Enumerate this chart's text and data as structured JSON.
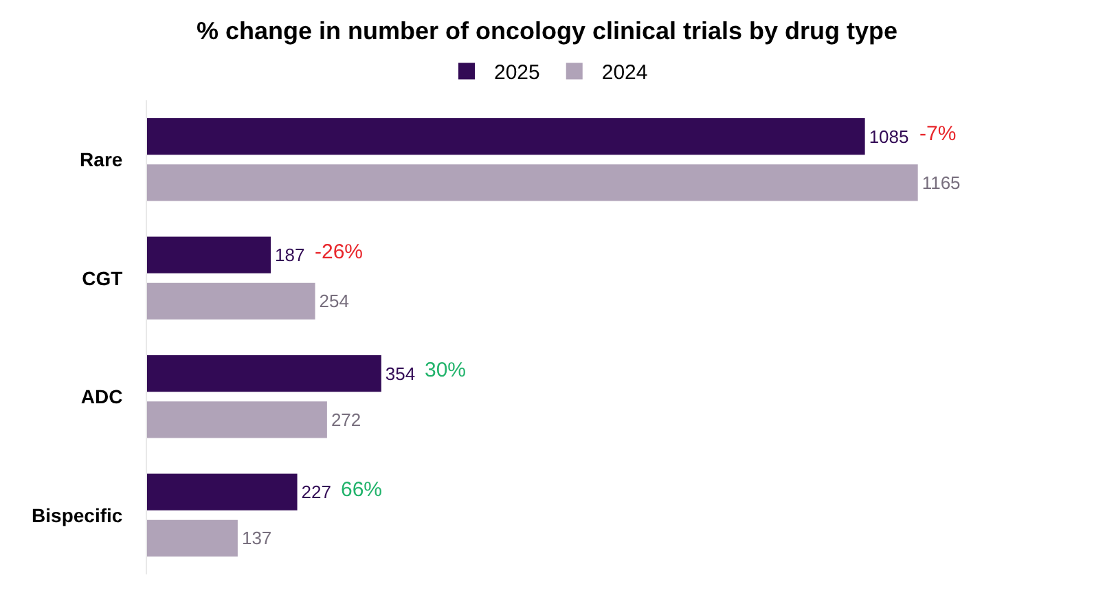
{
  "chart_data": {
    "type": "bar",
    "orientation": "horizontal",
    "title": "% change in number of oncology clinical trials by drug type",
    "categories": [
      "Rare",
      "CGT",
      "ADC",
      "Bispecific"
    ],
    "series": [
      {
        "name": "2025",
        "color": "#320a55",
        "values": [
          1085,
          187,
          354,
          227
        ]
      },
      {
        "name": "2024",
        "color": "#b0a3b8",
        "values": [
          1165,
          254,
          272,
          137
        ]
      }
    ],
    "data_labels": true,
    "legend": "top",
    "tick_labels": "y",
    "annotations": [
      {
        "text": "-7%",
        "x": 1085,
        "y": "Rare"
      },
      {
        "text": "-26%",
        "x": 187,
        "y": "CGT"
      },
      {
        "text": "30%",
        "x": 354,
        "y": "ADC"
      },
      {
        "text": "66%",
        "x": 227,
        "y": "Bispecific"
      }
    ]
  }
}
